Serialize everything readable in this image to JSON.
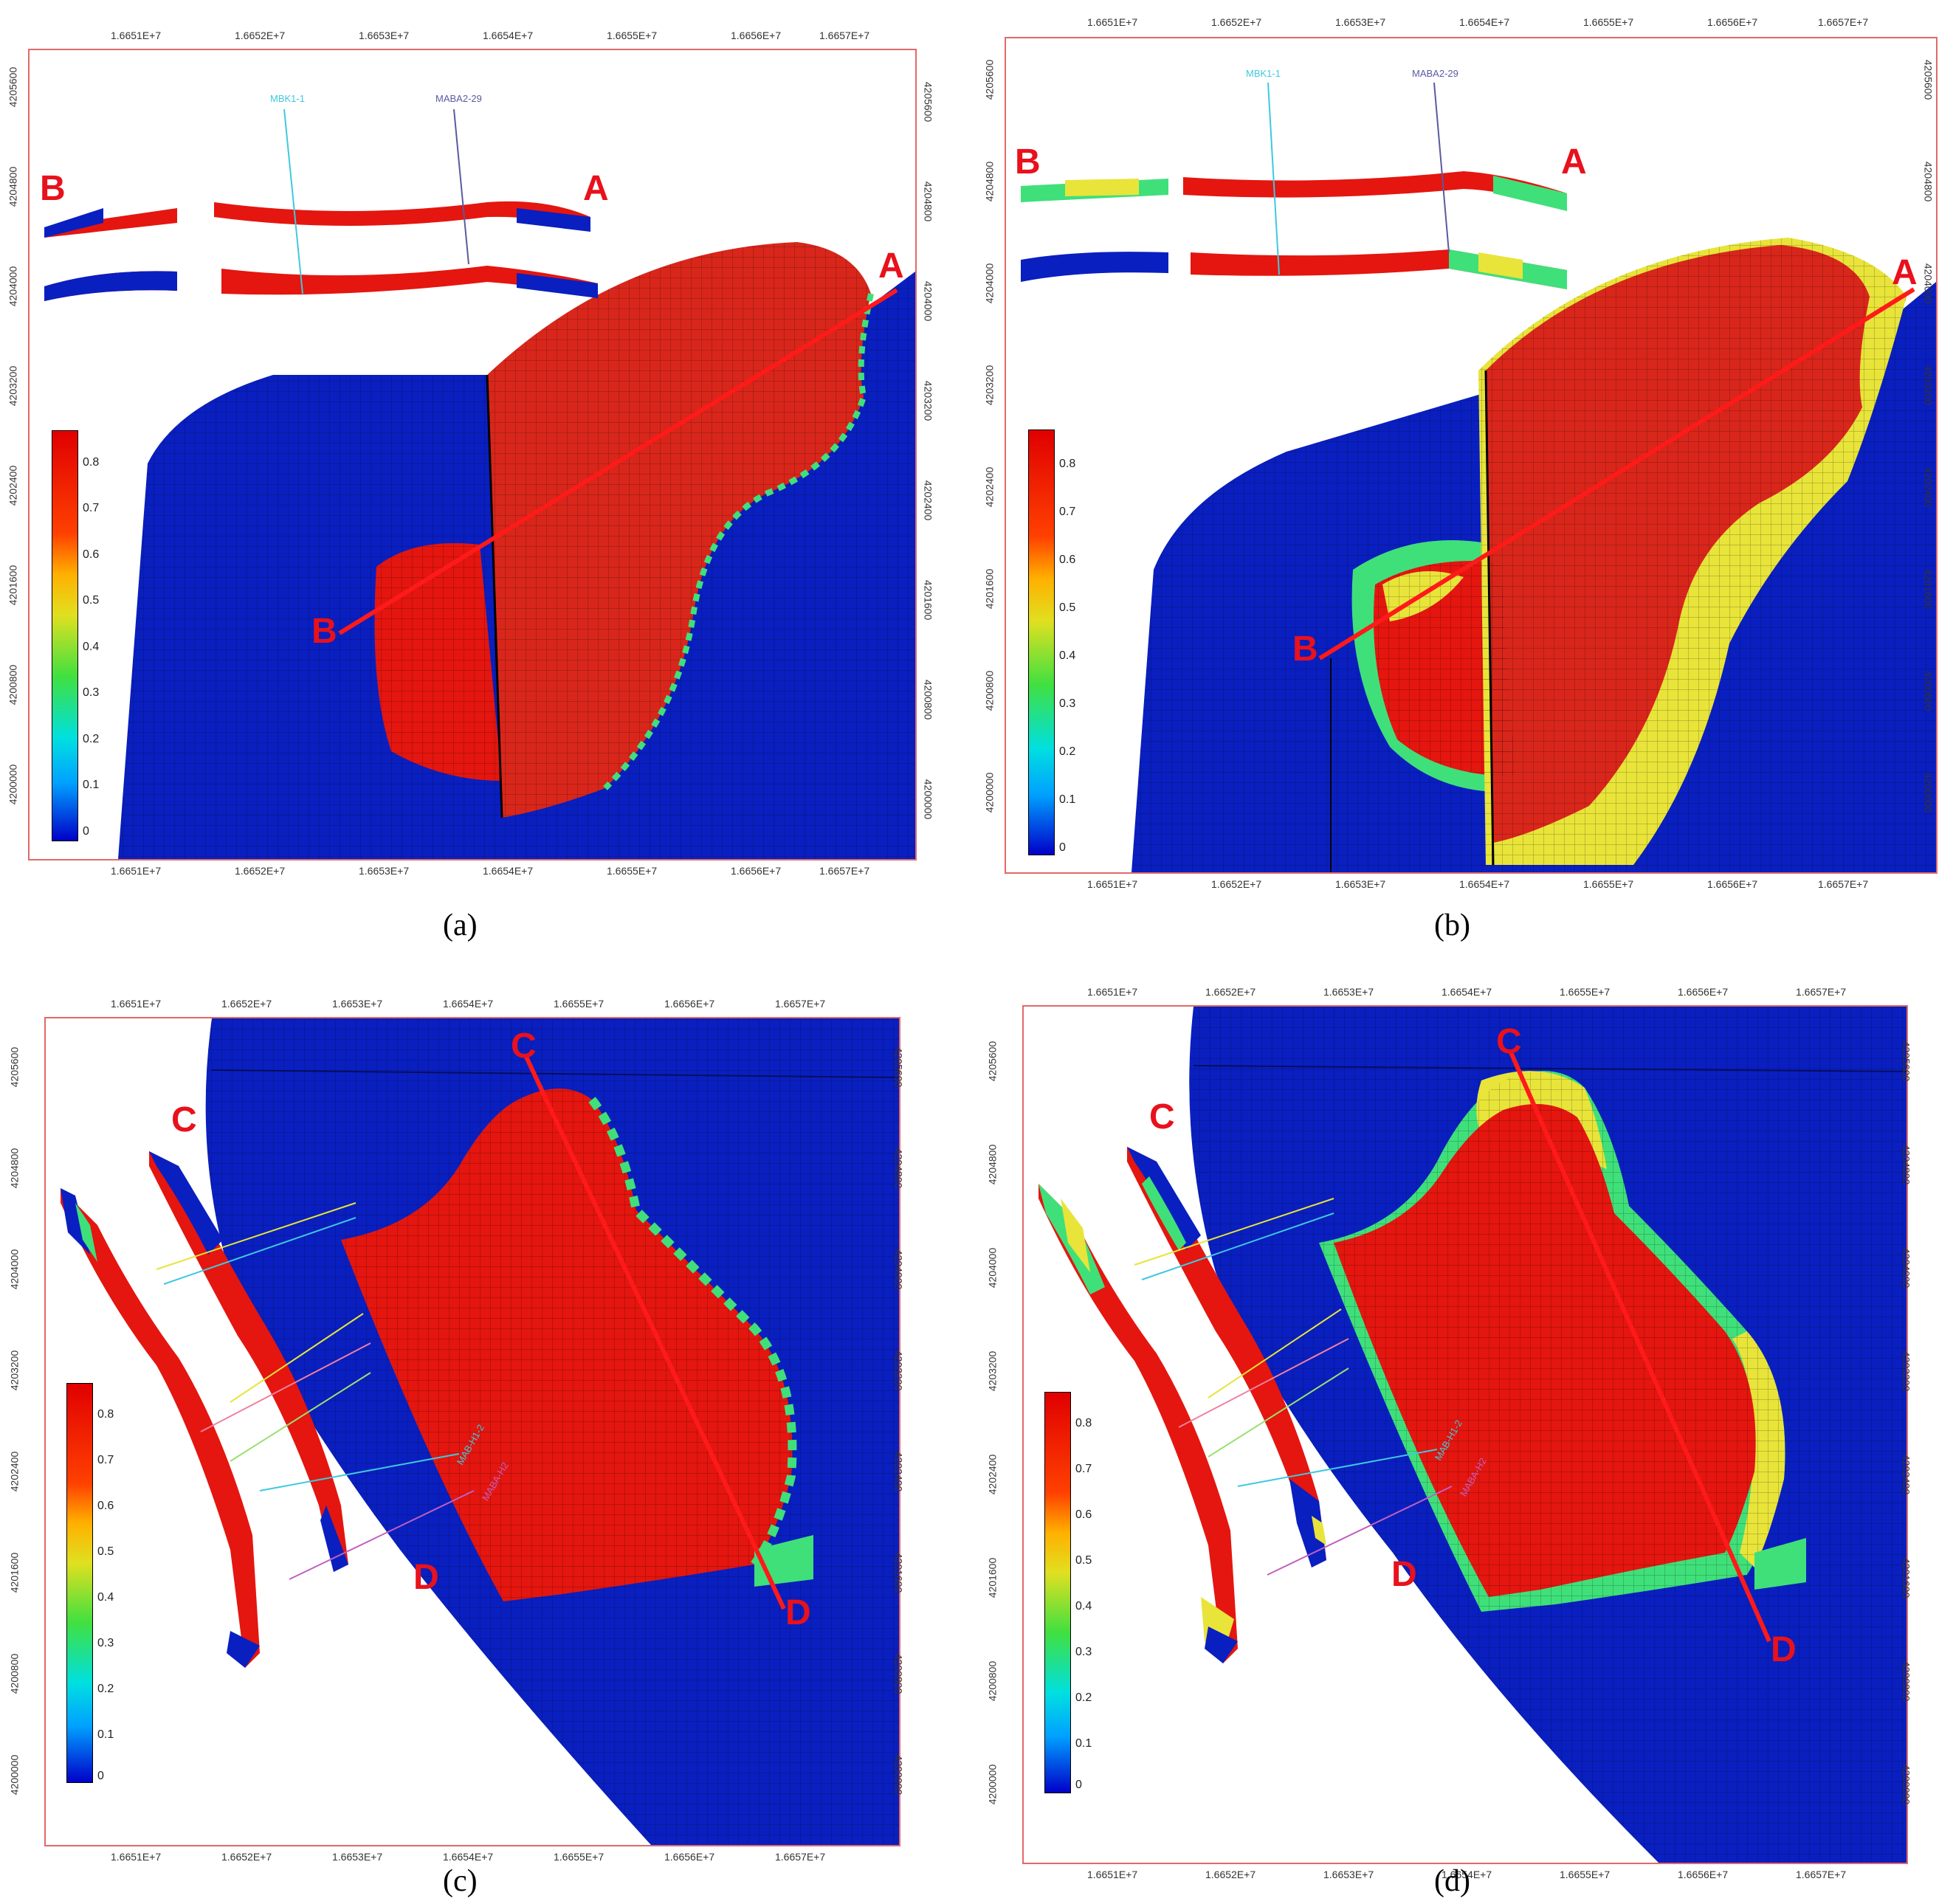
{
  "panels": [
    {
      "caption": "(a)",
      "x_ticks": [
        "1.6651E+7",
        "1.6652E+7",
        "1.6653E+7",
        "1.6654E+7",
        "1.6655E+7",
        "1.6656E+7",
        "1.6657E+7"
      ],
      "y_ticks": [
        "4205600",
        "4204800",
        "4204000",
        "4203200",
        "4202400",
        "4201600",
        "4200800",
        "4200000"
      ],
      "markers": [
        "A",
        "B",
        "A",
        "B"
      ],
      "wells": [
        "MBK1-1",
        "MABA2-29"
      ]
    },
    {
      "caption": "(b)",
      "x_ticks": [
        "1.6651E+7",
        "1.6652E+7",
        "1.6653E+7",
        "1.6654E+7",
        "1.6655E+7",
        "1.6656E+7",
        "1.6657E+7"
      ],
      "y_ticks": [
        "4205600",
        "4204800",
        "4204000",
        "4203200",
        "4202400",
        "4201600",
        "4200800",
        "4200000"
      ],
      "markers": [
        "A",
        "B",
        "A",
        "B"
      ],
      "wells": [
        "MBK1-1",
        "MABA2-29"
      ]
    },
    {
      "caption": "(c)",
      "x_ticks": [
        "1.6651E+7",
        "1.6652E+7",
        "1.6653E+7",
        "1.6654E+7",
        "1.6655E+7",
        "1.6656E+7",
        "1.6657E+7"
      ],
      "y_ticks": [
        "4205600",
        "4204800",
        "4204000",
        "4203200",
        "4202400",
        "4201600",
        "4200800",
        "4200000"
      ],
      "markers": [
        "C",
        "D",
        "C",
        "D"
      ],
      "wells": [
        "MAB-H1-2",
        "MABA-H2"
      ]
    },
    {
      "caption": "(d)",
      "x_ticks": [
        "1.6651E+7",
        "1.6652E+7",
        "1.6653E+7",
        "1.6654E+7",
        "1.6655E+7",
        "1.6656E+7",
        "1.6657E+7"
      ],
      "y_ticks": [
        "4205600",
        "4204800",
        "4204000",
        "4203200",
        "4202400",
        "4201600",
        "4200800",
        "4200000"
      ],
      "markers": [
        "C",
        "D",
        "C",
        "D"
      ],
      "wells": [
        "MAB-H1-2",
        "MABA-H2"
      ]
    }
  ],
  "colorbar": {
    "labels": [
      "0.8",
      "0.7",
      "0.6",
      "0.5",
      "0.4",
      "0.3",
      "0.2",
      "0.1",
      "0"
    ],
    "colors": [
      "#0000c8",
      "#00a0ff",
      "#00e0e0",
      "#40e040",
      "#e0e020",
      "#ffb000",
      "#ff4000",
      "#e00000"
    ]
  },
  "colors": {
    "low": "#0a1fc0",
    "high": "#e4160f",
    "mid_green": "#3fe07a",
    "mid_yellow": "#e8e43a",
    "frame": "#e06a6a",
    "section_line": "#ff1a1a"
  }
}
